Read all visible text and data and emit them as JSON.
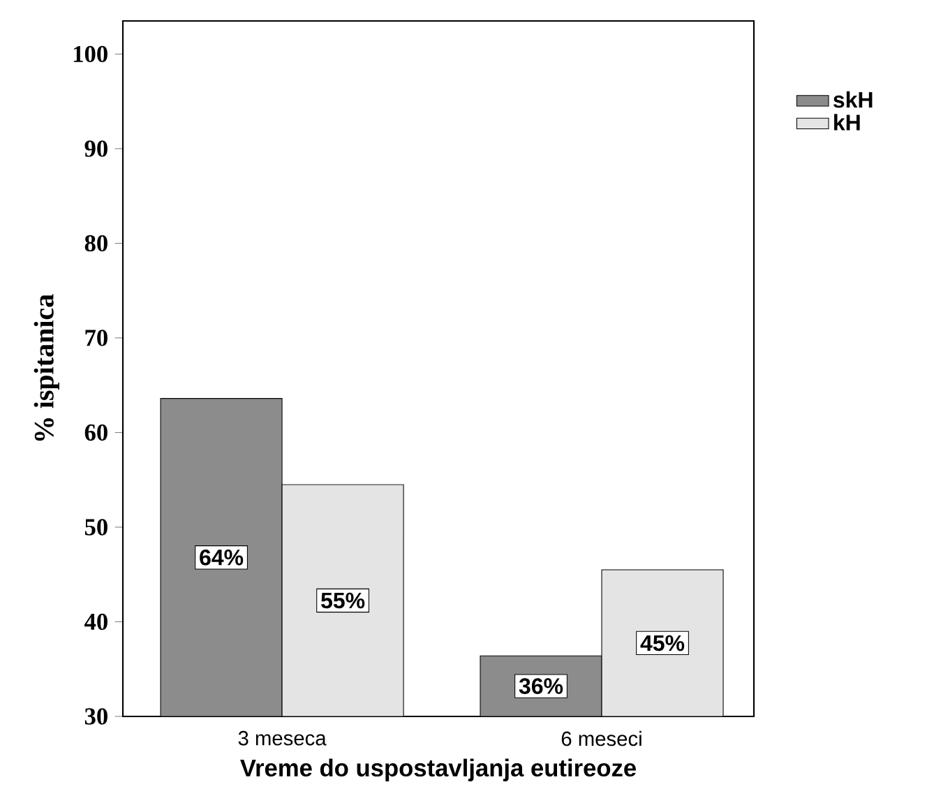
{
  "chart_data": {
    "type": "bar",
    "xlabel": "Vreme do uspostavljanja eutireoze",
    "ylabel": "% ispitanica",
    "categories": [
      "3 meseca",
      "6 meseci"
    ],
    "series": [
      {
        "name": "skH",
        "color": "#8c8c8c",
        "values": [
          63.6,
          36.4
        ],
        "value_labels": [
          "64%",
          "36%"
        ]
      },
      {
        "name": "kH",
        "color": "#e4e4e4",
        "values": [
          54.5,
          45.5
        ],
        "value_labels": [
          "55%",
          "45%"
        ]
      }
    ],
    "ylim": [
      30,
      103.5
    ],
    "yticks": [
      30,
      40,
      50,
      60,
      70,
      80,
      90,
      100
    ],
    "legend": "top right",
    "grid": false
  }
}
